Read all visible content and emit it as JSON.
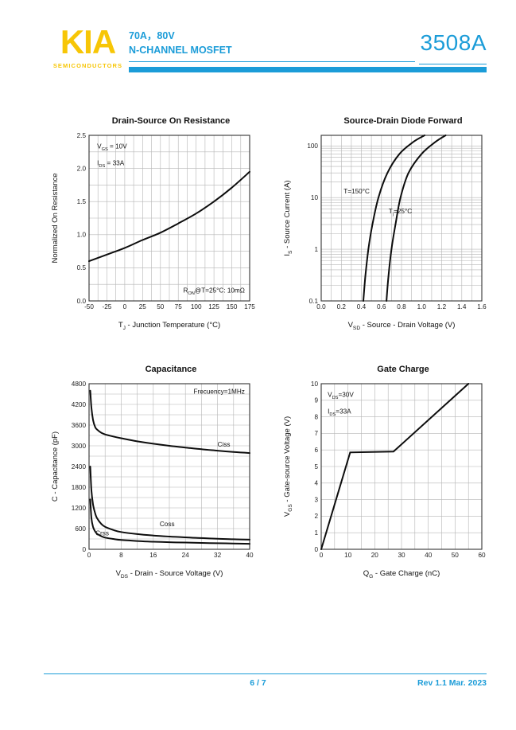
{
  "header": {
    "logo": "KIA",
    "logo_sub": "SEMICONDUCTORS",
    "spec_line1": "70A，80V",
    "spec_line2": "N-CHANNEL MOSFET",
    "part_number": "3508A"
  },
  "footer": {
    "page": "6 / 7",
    "revision": "Rev 1.1 Mar. 2023"
  },
  "colors": {
    "accent": "#1B9CD8",
    "logo_yellow": "#F7C606",
    "curve": "#0d0d0d",
    "grid": "#b5b5b5",
    "frame": "#333333"
  },
  "chart_data": [
    {
      "id": "drain-source-on-resistance",
      "type": "line",
      "title": "Drain-Source On Resistance",
      "xlabel": "T_J_ - Junction Temperature (°C)",
      "ylabel": "Normalized On Resistance",
      "x": {
        "min": -50,
        "max": 175,
        "minor_step": 12.5,
        "ticks": [
          -50,
          -25,
          0,
          25,
          50,
          75,
          100,
          125,
          150,
          175
        ],
        "labels": [
          "-50",
          "-25",
          "0",
          "25",
          "50",
          "75",
          "100",
          "125",
          "150",
          "175"
        ]
      },
      "y": {
        "min": 0,
        "max": 2.5,
        "minor_step": 0.25,
        "ticks": [
          0,
          0.5,
          1.0,
          1.5,
          2.0,
          2.5
        ],
        "labels": [
          "0.0",
          "0.5",
          "1.0",
          "1.5",
          "2.0",
          "2.5"
        ]
      },
      "series": [
        {
          "name": "normalized-rdson",
          "smooth": true,
          "points": [
            [
              -50,
              0.6
            ],
            [
              -25,
              0.7
            ],
            [
              0,
              0.8
            ],
            [
              25,
              0.92
            ],
            [
              50,
              1.03
            ],
            [
              75,
              1.17
            ],
            [
              100,
              1.32
            ],
            [
              125,
              1.5
            ],
            [
              150,
              1.71
            ],
            [
              175,
              1.95
            ]
          ]
        }
      ],
      "annotations": [
        {
          "text": "V_GS_ = 10V",
          "fx": 0.05,
          "fy": 0.08
        },
        {
          "text": "I_DS_ = 33A",
          "fx": 0.05,
          "fy": 0.18
        },
        {
          "text": "R_ON_@T=25°C: 10mΩ",
          "fx": 0.97,
          "fy": 0.95,
          "anchor": "end"
        }
      ]
    },
    {
      "id": "source-drain-diode-forward",
      "type": "line",
      "title": "Source-Drain Diode Forward",
      "xlabel": "V_SD_ - Source - Drain Voltage (V)",
      "ylabel": "I_S_ - Source Current (A)",
      "x": {
        "min": 0,
        "max": 1.6,
        "minor_step": 0.1,
        "ticks": [
          0,
          0.2,
          0.4,
          0.6,
          0.8,
          1.0,
          1.2,
          1.4,
          1.6
        ],
        "labels": [
          "0.0",
          "0.2",
          "0.4",
          "0.6",
          "0.8",
          "1.0",
          "1.2",
          "1.4",
          "1.6"
        ]
      },
      "y": {
        "scale": "log",
        "min": 0.1,
        "max": 160,
        "ticks": [
          0.1,
          1,
          10,
          100
        ],
        "labels": [
          "0.1",
          "1",
          "10",
          "100"
        ]
      },
      "series": [
        {
          "name": "T-150C",
          "smooth": true,
          "points": [
            [
              0.42,
              0.1
            ],
            [
              0.44,
              0.3
            ],
            [
              0.47,
              1
            ],
            [
              0.51,
              3
            ],
            [
              0.57,
              10
            ],
            [
              0.66,
              30
            ],
            [
              0.78,
              70
            ],
            [
              0.92,
              120
            ],
            [
              1.03,
              160
            ]
          ]
        },
        {
          "name": "Tj-25C",
          "smooth": true,
          "points": [
            [
              0.65,
              0.1
            ],
            [
              0.67,
              0.3
            ],
            [
              0.7,
              1
            ],
            [
              0.74,
              3
            ],
            [
              0.79,
              10
            ],
            [
              0.87,
              30
            ],
            [
              1.0,
              70
            ],
            [
              1.14,
              120
            ],
            [
              1.24,
              160
            ]
          ]
        }
      ],
      "annotations": [
        {
          "text": "T=150°C",
          "fx": 0.14,
          "fy": 0.35
        },
        {
          "text": "T_j_=25°C",
          "fx": 0.42,
          "fy": 0.47
        }
      ]
    },
    {
      "id": "capacitance",
      "type": "line",
      "title": "Capacitance",
      "xlabel": "V_DS_ - Drain - Source Voltage (V)",
      "ylabel": "C - Capacitance (pF)",
      "x": {
        "min": 0,
        "max": 40,
        "minor_step": 4,
        "ticks": [
          0,
          8,
          16,
          24,
          32,
          40
        ],
        "labels": [
          "0",
          "8",
          "16",
          "24",
          "32",
          "40"
        ]
      },
      "y": {
        "min": 0,
        "max": 4800,
        "minor_step": 300,
        "ticks": [
          0,
          600,
          1200,
          1800,
          2400,
          3000,
          3600,
          4200,
          4800
        ],
        "labels": [
          "0",
          "600",
          "1200",
          "1800",
          "2400",
          "3000",
          "3600",
          "4200",
          "4800"
        ]
      },
      "series": [
        {
          "name": "Ciss",
          "smooth": true,
          "points": [
            [
              0.3,
              4600
            ],
            [
              0.6,
              4100
            ],
            [
              1,
              3750
            ],
            [
              1.5,
              3550
            ],
            [
              2,
              3470
            ],
            [
              3,
              3380
            ],
            [
              4,
              3330
            ],
            [
              6,
              3270
            ],
            [
              8,
              3220
            ],
            [
              12,
              3130
            ],
            [
              16,
              3060
            ],
            [
              20,
              3000
            ],
            [
              24,
              2950
            ],
            [
              28,
              2900
            ],
            [
              32,
              2860
            ],
            [
              36,
              2820
            ],
            [
              40,
              2790
            ]
          ]
        },
        {
          "name": "Coss",
          "smooth": true,
          "points": [
            [
              0.3,
              2400
            ],
            [
              0.6,
              1700
            ],
            [
              1,
              1300
            ],
            [
              1.5,
              1050
            ],
            [
              2,
              900
            ],
            [
              3,
              740
            ],
            [
              4,
              650
            ],
            [
              6,
              560
            ],
            [
              8,
              500
            ],
            [
              12,
              440
            ],
            [
              16,
              400
            ],
            [
              20,
              370
            ],
            [
              24,
              345
            ],
            [
              28,
              325
            ],
            [
              32,
              305
            ],
            [
              36,
              290
            ],
            [
              40,
              280
            ]
          ]
        },
        {
          "name": "Crss",
          "smooth": true,
          "points": [
            [
              0.3,
              1450
            ],
            [
              0.6,
              900
            ],
            [
              1,
              650
            ],
            [
              1.5,
              520
            ],
            [
              2,
              450
            ],
            [
              3,
              380
            ],
            [
              4,
              340
            ],
            [
              6,
              300
            ],
            [
              8,
              270
            ],
            [
              12,
              240
            ],
            [
              16,
              220
            ],
            [
              20,
              205
            ],
            [
              24,
              195
            ],
            [
              28,
              185
            ],
            [
              32,
              175
            ],
            [
              36,
              168
            ],
            [
              40,
              160
            ]
          ]
        }
      ],
      "annotations": [
        {
          "text": "Frecuency=1MHz",
          "fx": 0.97,
          "fy": 0.06,
          "anchor": "end"
        },
        {
          "text": "Ciss",
          "fx": 0.8,
          "fy": 0.38
        },
        {
          "text": "Coss",
          "fx": 0.44,
          "fy": 0.86
        },
        {
          "text": "Crss",
          "fx": 0.04,
          "fy": 0.915
        }
      ]
    },
    {
      "id": "gate-charge",
      "type": "line",
      "title": "Gate Charge",
      "xlabel": "Q_G_ - Gate Charge (nC)",
      "ylabel": "V_GS_ - Gate-source Voltage (V)",
      "x": {
        "min": 0,
        "max": 60,
        "minor_step": 5,
        "ticks": [
          0,
          10,
          20,
          30,
          40,
          50,
          60
        ],
        "labels": [
          "0",
          "10",
          "20",
          "30",
          "40",
          "50",
          "60"
        ]
      },
      "y": {
        "min": 0,
        "max": 10,
        "minor_step": 1,
        "ticks": [
          0,
          1,
          2,
          3,
          4,
          5,
          6,
          7,
          8,
          9,
          10
        ],
        "labels": [
          "0",
          "1",
          "2",
          "3",
          "4",
          "5",
          "6",
          "7",
          "8",
          "9",
          "10"
        ]
      },
      "series": [
        {
          "name": "vgs-vs-qg",
          "smooth": false,
          "points": [
            [
              0,
              0
            ],
            [
              10.8,
              5.85
            ],
            [
              27,
              5.9
            ],
            [
              55,
              10
            ]
          ]
        }
      ],
      "annotations": [
        {
          "text": "V_DS_=30V",
          "fx": 0.04,
          "fy": 0.08
        },
        {
          "text": "I_DS_=33A",
          "fx": 0.04,
          "fy": 0.18
        }
      ]
    }
  ]
}
